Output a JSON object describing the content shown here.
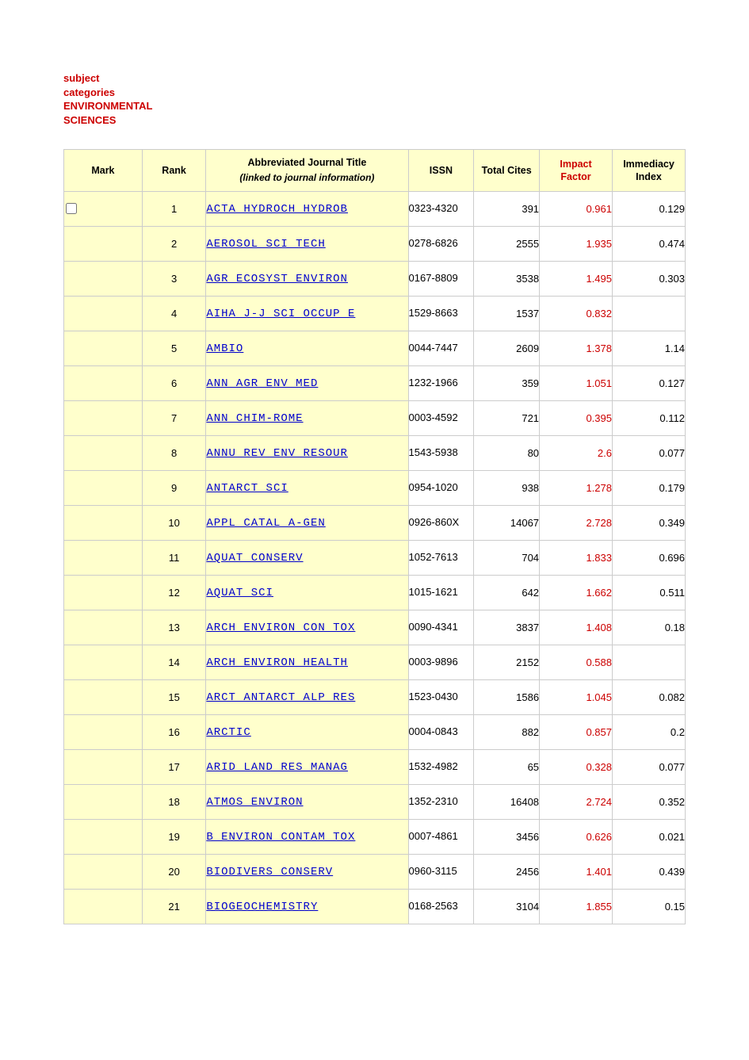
{
  "header": {
    "line1": "subject categories",
    "line2": "ENVIRONMENTAL SCIENCES"
  },
  "table": {
    "columns": {
      "mark": {
        "label": "Mark"
      },
      "rank": {
        "label": "Rank"
      },
      "title": {
        "label": "Abbreviated Journal Title",
        "subtitle": "(linked to journal information)"
      },
      "issn": {
        "label": "ISSN"
      },
      "cites": {
        "label": "Total Cites"
      },
      "impact": {
        "label": "Impact",
        "label2": "Factor"
      },
      "imm": {
        "label": "Immediacy",
        "label2": "Index"
      }
    },
    "rows": [
      {
        "rank": "1",
        "title": "ACTA HYDROCH HYDROB",
        "issn": "0323-4320",
        "cites": "391",
        "impact": "0.961",
        "imm": "0.129",
        "show_checkbox": true
      },
      {
        "rank": "2",
        "title": "AEROSOL SCI TECH",
        "issn": "0278-6826",
        "cites": "2555",
        "impact": "1.935",
        "imm": "0.474"
      },
      {
        "rank": "3",
        "title": "AGR ECOSYST ENVIRON",
        "issn": "0167-8809",
        "cites": "3538",
        "impact": "1.495",
        "imm": "0.303"
      },
      {
        "rank": "4",
        "title": "AIHA J-J SCI OCCUP E",
        "issn": "1529-8663",
        "cites": "1537",
        "impact": "0.832",
        "imm": ""
      },
      {
        "rank": "5",
        "title": "AMBIO",
        "issn": "0044-7447",
        "cites": "2609",
        "impact": "1.378",
        "imm": "1.14"
      },
      {
        "rank": "6",
        "title": "ANN AGR ENV MED",
        "issn": "1232-1966",
        "cites": "359",
        "impact": "1.051",
        "imm": "0.127"
      },
      {
        "rank": "7",
        "title": "ANN CHIM-ROME",
        "issn": "0003-4592",
        "cites": "721",
        "impact": "0.395",
        "imm": "0.112"
      },
      {
        "rank": "8",
        "title": "ANNU REV ENV RESOUR",
        "issn": "1543-5938",
        "cites": "80",
        "impact": "2.6",
        "imm": "0.077"
      },
      {
        "rank": "9",
        "title": "ANTARCT SCI",
        "issn": "0954-1020",
        "cites": "938",
        "impact": "1.278",
        "imm": "0.179"
      },
      {
        "rank": "10",
        "title": "APPL CATAL A-GEN",
        "issn": "0926-860X",
        "cites": "14067",
        "impact": "2.728",
        "imm": "0.349"
      },
      {
        "rank": "11",
        "title": "AQUAT CONSERV",
        "issn": "1052-7613",
        "cites": "704",
        "impact": "1.833",
        "imm": "0.696"
      },
      {
        "rank": "12",
        "title": "AQUAT SCI",
        "issn": "1015-1621",
        "cites": "642",
        "impact": "1.662",
        "imm": "0.511"
      },
      {
        "rank": "13",
        "title": "ARCH ENVIRON CON TOX",
        "issn": "0090-4341",
        "cites": "3837",
        "impact": "1.408",
        "imm": "0.18"
      },
      {
        "rank": "14",
        "title": "ARCH ENVIRON HEALTH",
        "issn": "0003-9896",
        "cites": "2152",
        "impact": "0.588",
        "imm": ""
      },
      {
        "rank": "15",
        "title": "ARCT ANTARCT ALP RES",
        "issn": "1523-0430",
        "cites": "1586",
        "impact": "1.045",
        "imm": "0.082"
      },
      {
        "rank": "16",
        "title": "ARCTIC",
        "issn": "0004-0843",
        "cites": "882",
        "impact": "0.857",
        "imm": "0.2"
      },
      {
        "rank": "17",
        "title": "ARID LAND RES MANAG",
        "issn": "1532-4982",
        "cites": "65",
        "impact": "0.328",
        "imm": "0.077"
      },
      {
        "rank": "18",
        "title": "ATMOS ENVIRON",
        "issn": "1352-2310",
        "cites": "16408",
        "impact": "2.724",
        "imm": "0.352"
      },
      {
        "rank": "19",
        "title": "B ENVIRON CONTAM TOX",
        "issn": "0007-4861",
        "cites": "3456",
        "impact": "0.626",
        "imm": "0.021"
      },
      {
        "rank": "20",
        "title": "BIODIVERS CONSERV",
        "issn": "0960-3115",
        "cites": "2456",
        "impact": "1.401",
        "imm": "0.439"
      },
      {
        "rank": "21",
        "title": "BIOGEOCHEMISTRY",
        "issn": "0168-2563",
        "cites": "3104",
        "impact": "1.855",
        "imm": "0.15"
      }
    ]
  },
  "style": {
    "header_bg": "#ffffcc",
    "border_color": "#cccccc",
    "link_color": "#0000cc",
    "impact_color": "#cc0000",
    "header_text_color": "#cc0000",
    "body_font": "Verdana",
    "mono_font": "Courier New",
    "header_fontsize_pt": 10,
    "cell_fontsize_pt": 10,
    "link_fontsize_pt": 11
  }
}
